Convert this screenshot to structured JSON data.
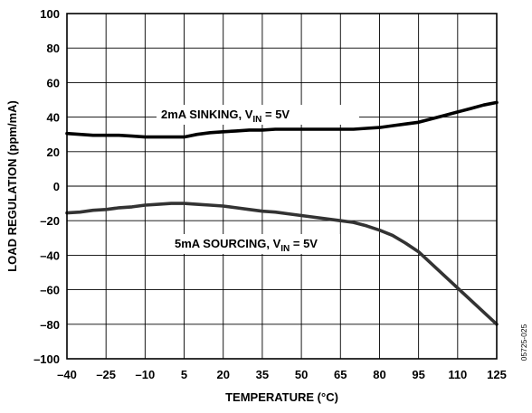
{
  "chart_data": {
    "type": "line",
    "xlabel": "TEMPERATURE (°C)",
    "ylabel": "LOAD REGULATION (ppm/mA)",
    "xlim": [
      -40,
      125
    ],
    "ylim": [
      -100,
      100
    ],
    "xticks": [
      -40,
      -25,
      -10,
      5,
      20,
      35,
      50,
      65,
      80,
      95,
      110,
      125
    ],
    "xtick_labels": [
      "–40",
      "–25",
      "–10",
      "5",
      "20",
      "35",
      "50",
      "65",
      "80",
      "95",
      "110",
      "125"
    ],
    "yticks": [
      100,
      80,
      60,
      40,
      20,
      0,
      -20,
      -40,
      -60,
      -80,
      -100
    ],
    "ytick_labels": [
      "100",
      "80",
      "60",
      "40",
      "20",
      "0",
      "–20",
      "–40",
      "–60",
      "–80",
      "–100"
    ],
    "grid": true,
    "series": [
      {
        "name": "2mA SINKING, VIN = 5V",
        "label_parts": [
          "2mA SINKING, V",
          "IN",
          " = 5V"
        ],
        "color": "#000000",
        "x": [
          -40,
          -35,
          -30,
          -25,
          -20,
          -15,
          -10,
          -5,
          0,
          5,
          10,
          15,
          20,
          25,
          30,
          35,
          40,
          45,
          50,
          55,
          60,
          65,
          70,
          75,
          80,
          85,
          90,
          95,
          100,
          105,
          110,
          115,
          120,
          125
        ],
        "y": [
          30.5,
          30,
          29.5,
          29.5,
          29.5,
          29,
          28.5,
          28.5,
          28.5,
          28.5,
          30,
          31,
          31.5,
          32,
          32.5,
          32.5,
          33,
          33,
          33,
          33,
          33,
          33,
          33,
          33.5,
          34,
          35,
          36,
          37,
          39,
          41,
          43,
          45,
          47,
          48.5
        ]
      },
      {
        "name": "5mA SOURCING, VIN = 5V",
        "label_parts": [
          "5mA SOURCING, V",
          "IN",
          " = 5V"
        ],
        "color": "#333333",
        "x": [
          -40,
          -35,
          -30,
          -25,
          -20,
          -15,
          -10,
          -5,
          0,
          5,
          10,
          15,
          20,
          25,
          30,
          35,
          40,
          45,
          50,
          55,
          60,
          65,
          70,
          75,
          80,
          85,
          90,
          95,
          100,
          105,
          110,
          115,
          120,
          125
        ],
        "y": [
          -15.5,
          -15,
          -14,
          -13.5,
          -12.5,
          -12,
          -11,
          -10.5,
          -10,
          -10,
          -10.5,
          -11,
          -11.5,
          -12.5,
          -13.5,
          -14.5,
          -15,
          -16,
          -17,
          -18,
          -19,
          -20,
          -21,
          -23,
          -25.5,
          -28.5,
          -33,
          -38,
          -45,
          -52,
          -59,
          -66,
          -73,
          -80
        ]
      }
    ],
    "figure_id": "05725-025"
  }
}
